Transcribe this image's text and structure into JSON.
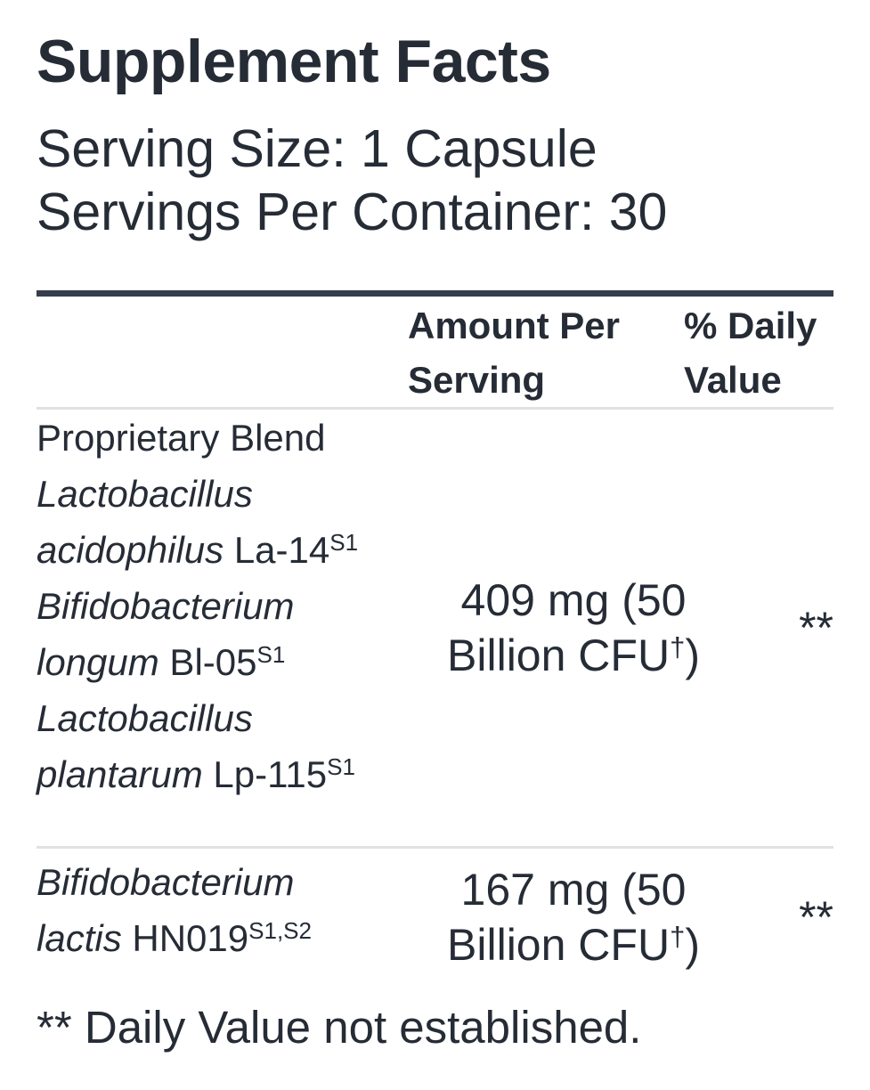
{
  "title": "Supplement Facts",
  "serving_info": {
    "serving_size": "Serving Size: 1 Capsule",
    "servings_per_container": "Servings Per Container: 30"
  },
  "table": {
    "header": {
      "amount_label": "Amount Per Serving",
      "daily_value_label": "% Daily Value"
    },
    "rows": [
      {
        "name_lines": [
          {
            "plain": "Proprietary Blend"
          },
          {
            "italic": "Lactobacillus"
          },
          {
            "italic": "acidophilus",
            "plain": " La-14",
            "sup": "S1"
          },
          {
            "italic": "Bifidobacterium"
          },
          {
            "italic": "longum",
            "plain": " Bl-05",
            "sup": "S1"
          },
          {
            "italic": "Lactobacillus"
          },
          {
            "italic": "plantarum",
            "plain": " Lp-115",
            "sup": "S1"
          }
        ],
        "amount": {
          "line1": "409 mg (50",
          "line2_pre": "Billion CFU",
          "line2_sup": "†",
          "line2_post": ")"
        },
        "daily_value": "**"
      },
      {
        "name_lines": [
          {
            "italic": "Bifidobacterium"
          },
          {
            "italic": "lactis",
            "plain": " HN019",
            "sup": "S1,S2"
          }
        ],
        "amount": {
          "line1": "167 mg (50",
          "line2_pre": "Billion CFU",
          "line2_sup": "†",
          "line2_post": ")"
        },
        "daily_value": "**"
      }
    ]
  },
  "footnote": "** Daily Value not established.",
  "colors": {
    "text": "#262c36",
    "rule_heavy": "#363d4c",
    "rule_light": "#dfe1e3",
    "background": "#ffffff"
  }
}
